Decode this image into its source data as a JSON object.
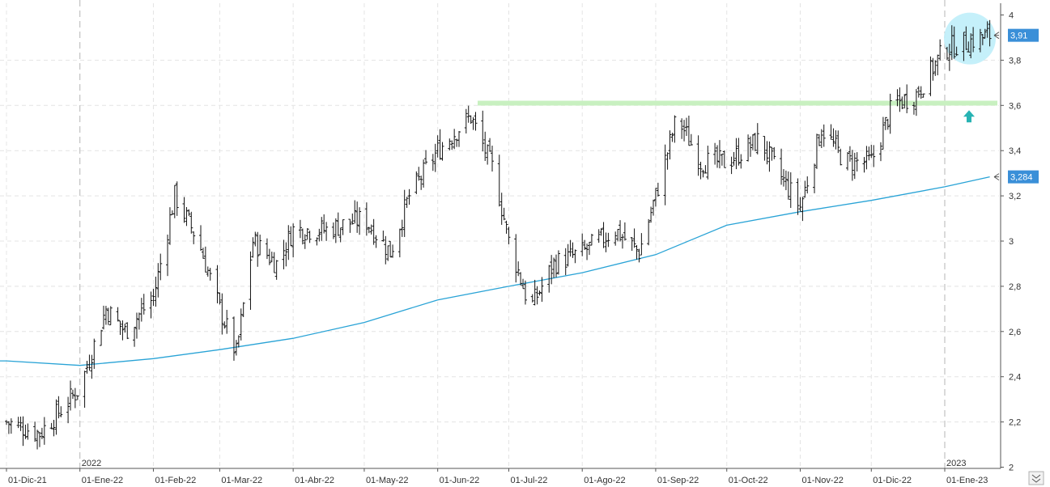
{
  "chart_data": {
    "type": "line",
    "title": "",
    "xlabel": "",
    "ylabel": "",
    "ylim": [
      2,
      4
    ],
    "y_ticks": [
      "2",
      "2,2",
      "2,4",
      "2,6",
      "2,8",
      "3",
      "3,2",
      "3,4",
      "3,6",
      "3,8",
      "4"
    ],
    "x_ticks": [
      "01-Dic-21",
      "01-Ene-22",
      "01-Feb-22",
      "01-Mar-22",
      "01-Abr-22",
      "01-May-22",
      "01-Jun-22",
      "01-Jul-22",
      "01-Ago-22",
      "01-Sep-22",
      "01-Oct-22",
      "01-Nov-22",
      "01-Dic-22",
      "01-Ene-23"
    ],
    "year_markers": [
      "2022",
      "2023"
    ],
    "grid": true,
    "series": [
      {
        "type": "ohlc-bars",
        "color": "#111111",
        "x": [
          "2021-12-01",
          "2021-12-15",
          "2022-01-01",
          "2022-01-12",
          "2022-01-20",
          "2022-02-01",
          "2022-02-10",
          "2022-02-20",
          "2022-03-01",
          "2022-03-08",
          "2022-03-15",
          "2022-03-25",
          "2022-04-01",
          "2022-04-15",
          "2022-05-01",
          "2022-05-12",
          "2022-05-20",
          "2022-06-01",
          "2022-06-10",
          "2022-06-15",
          "2022-06-25",
          "2022-07-01",
          "2022-07-10",
          "2022-07-20",
          "2022-08-01",
          "2022-08-15",
          "2022-08-25",
          "2022-09-01",
          "2022-09-10",
          "2022-09-20",
          "2022-10-01",
          "2022-10-15",
          "2022-10-20",
          "2022-11-01",
          "2022-11-10",
          "2022-11-20",
          "2022-12-01",
          "2022-12-10",
          "2022-12-20",
          "2023-01-01",
          "2023-01-10",
          "2023-01-20"
        ],
        "close": [
          2.2,
          2.15,
          2.35,
          2.7,
          2.6,
          2.75,
          3.2,
          3.0,
          2.7,
          2.5,
          3.0,
          2.9,
          3.05,
          3.05,
          3.1,
          2.95,
          3.2,
          3.4,
          3.5,
          3.55,
          3.3,
          3.0,
          2.7,
          2.9,
          2.95,
          3.05,
          2.95,
          3.2,
          3.55,
          3.35,
          3.35,
          3.45,
          3.35,
          3.15,
          3.5,
          3.35,
          3.35,
          3.6,
          3.65,
          3.85,
          3.88,
          3.91
        ]
      },
      {
        "type": "line",
        "color": "#29a3d6",
        "x": [
          "2021-12-01",
          "2022-01-01",
          "2022-02-01",
          "2022-03-01",
          "2022-04-01",
          "2022-05-01",
          "2022-06-01",
          "2022-07-01",
          "2022-08-01",
          "2022-09-01",
          "2022-10-01",
          "2022-11-01",
          "2022-12-01",
          "2023-01-01",
          "2023-01-20"
        ],
        "values": [
          2.47,
          2.45,
          2.48,
          2.52,
          2.57,
          2.64,
          2.74,
          2.8,
          2.86,
          2.94,
          3.07,
          3.13,
          3.18,
          3.24,
          3.284
        ]
      }
    ],
    "annotations": {
      "resistance_level": 3.61,
      "resistance_color": "#c8f0c0",
      "last_price_label": "3,91",
      "last_price_value": 3.91,
      "moving_average_label": "3,284",
      "moving_average_value": 3.284,
      "badge_color": "#3a8fd8",
      "breakout_circle_color": "#bfeefa",
      "arrow_color": "#27b3b3"
    }
  }
}
